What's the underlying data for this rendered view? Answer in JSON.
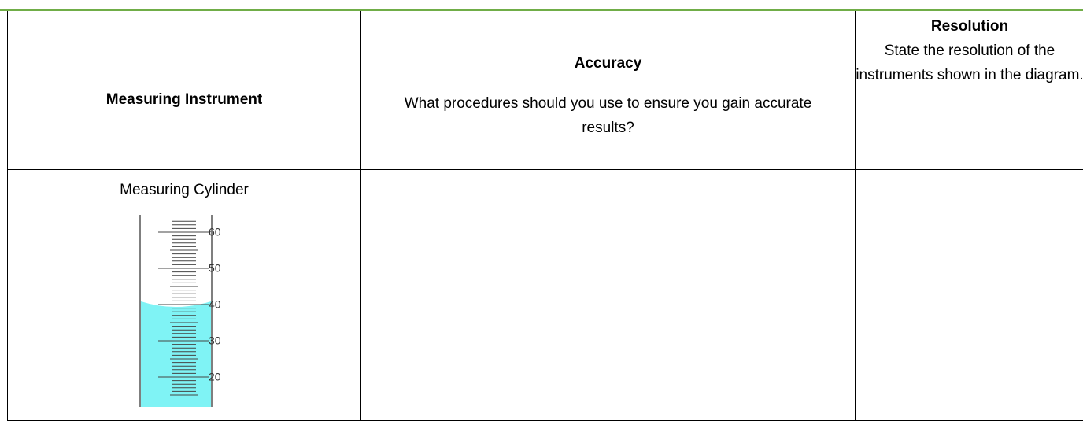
{
  "table": {
    "header": [
      "Measuring Instrument",
      {
        "title": "Accuracy",
        "text": "What procedures should you use to ensure you gain accurate results?"
      },
      {
        "title": "Resolution",
        "text": "State the resolution of the instruments shown in the diagram."
      }
    ],
    "rows": [
      {
        "instrument": "Measuring Cylinder"
      }
    ]
  },
  "cylinder_scale": [
    "60",
    "50",
    "40",
    "30",
    "20"
  ]
}
